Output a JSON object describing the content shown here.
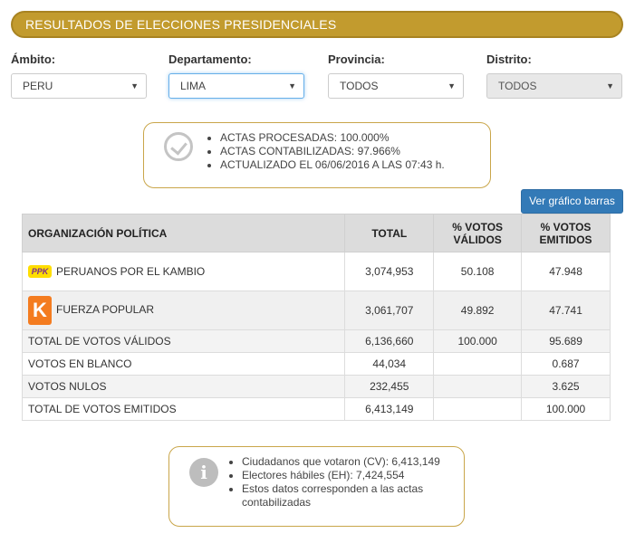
{
  "banner": {
    "title": "RESULTADOS DE ELECCIONES PRESIDENCIALES"
  },
  "filters": {
    "ambito": {
      "label": "Ámbito:",
      "value": "PERU"
    },
    "departamento": {
      "label": "Departamento:",
      "value": "LIMA"
    },
    "provincia": {
      "label": "Provincia:",
      "value": "TODOS"
    },
    "distrito": {
      "label": "Distrito:",
      "value": "TODOS"
    }
  },
  "status": {
    "icon": "check-circle-icon",
    "items": [
      "ACTAS PROCESADAS: 100.000%",
      "ACTAS CONTABILIZADAS: 97.966%",
      "ACTUALIZADO EL 06/06/2016 A LAS 07:43 h."
    ]
  },
  "chart_button": {
    "label": "Ver gráfico barras"
  },
  "table": {
    "headers": {
      "org": "ORGANIZACIÓN POLÍTICA",
      "total": "TOTAL",
      "validos_1": "% VOTOS",
      "validos_2": "VÁLIDOS",
      "emitidos_1": "% VOTOS",
      "emitidos_2": "EMITIDOS"
    },
    "parties": [
      {
        "logo_text": "PPK",
        "name": "PERUANOS POR EL KAMBIO",
        "total": "3,074,953",
        "pct_validos": "50.108",
        "pct_emitidos": "47.948"
      },
      {
        "logo_text": "K",
        "name": "FUERZA POPULAR",
        "total": "3,061,707",
        "pct_validos": "49.892",
        "pct_emitidos": "47.741"
      }
    ],
    "summary": [
      {
        "name": "TOTAL DE VOTOS VÁLIDOS",
        "total": "6,136,660",
        "pct_validos": "100.000",
        "pct_emitidos": "95.689"
      },
      {
        "name": "VOTOS EN BLANCO",
        "total": "44,034",
        "pct_validos": "",
        "pct_emitidos": "0.687"
      },
      {
        "name": "VOTOS NULOS",
        "total": "232,455",
        "pct_validos": "",
        "pct_emitidos": "3.625"
      },
      {
        "name": "TOTAL DE VOTOS EMITIDOS",
        "total": "6,413,149",
        "pct_validos": "",
        "pct_emitidos": "100.000"
      }
    ]
  },
  "footer_info": {
    "icon": "info-icon",
    "icon_glyph": "i",
    "items": [
      "Ciudadanos que votaron (CV): 6,413,149",
      "Electores hábiles (EH): 7,424,554",
      "Estos datos corresponden a las actas contabilizadas"
    ]
  },
  "colors": {
    "banner": "#c29b2e",
    "accent_button": "#337ab7",
    "box_border": "#c9a64a"
  }
}
